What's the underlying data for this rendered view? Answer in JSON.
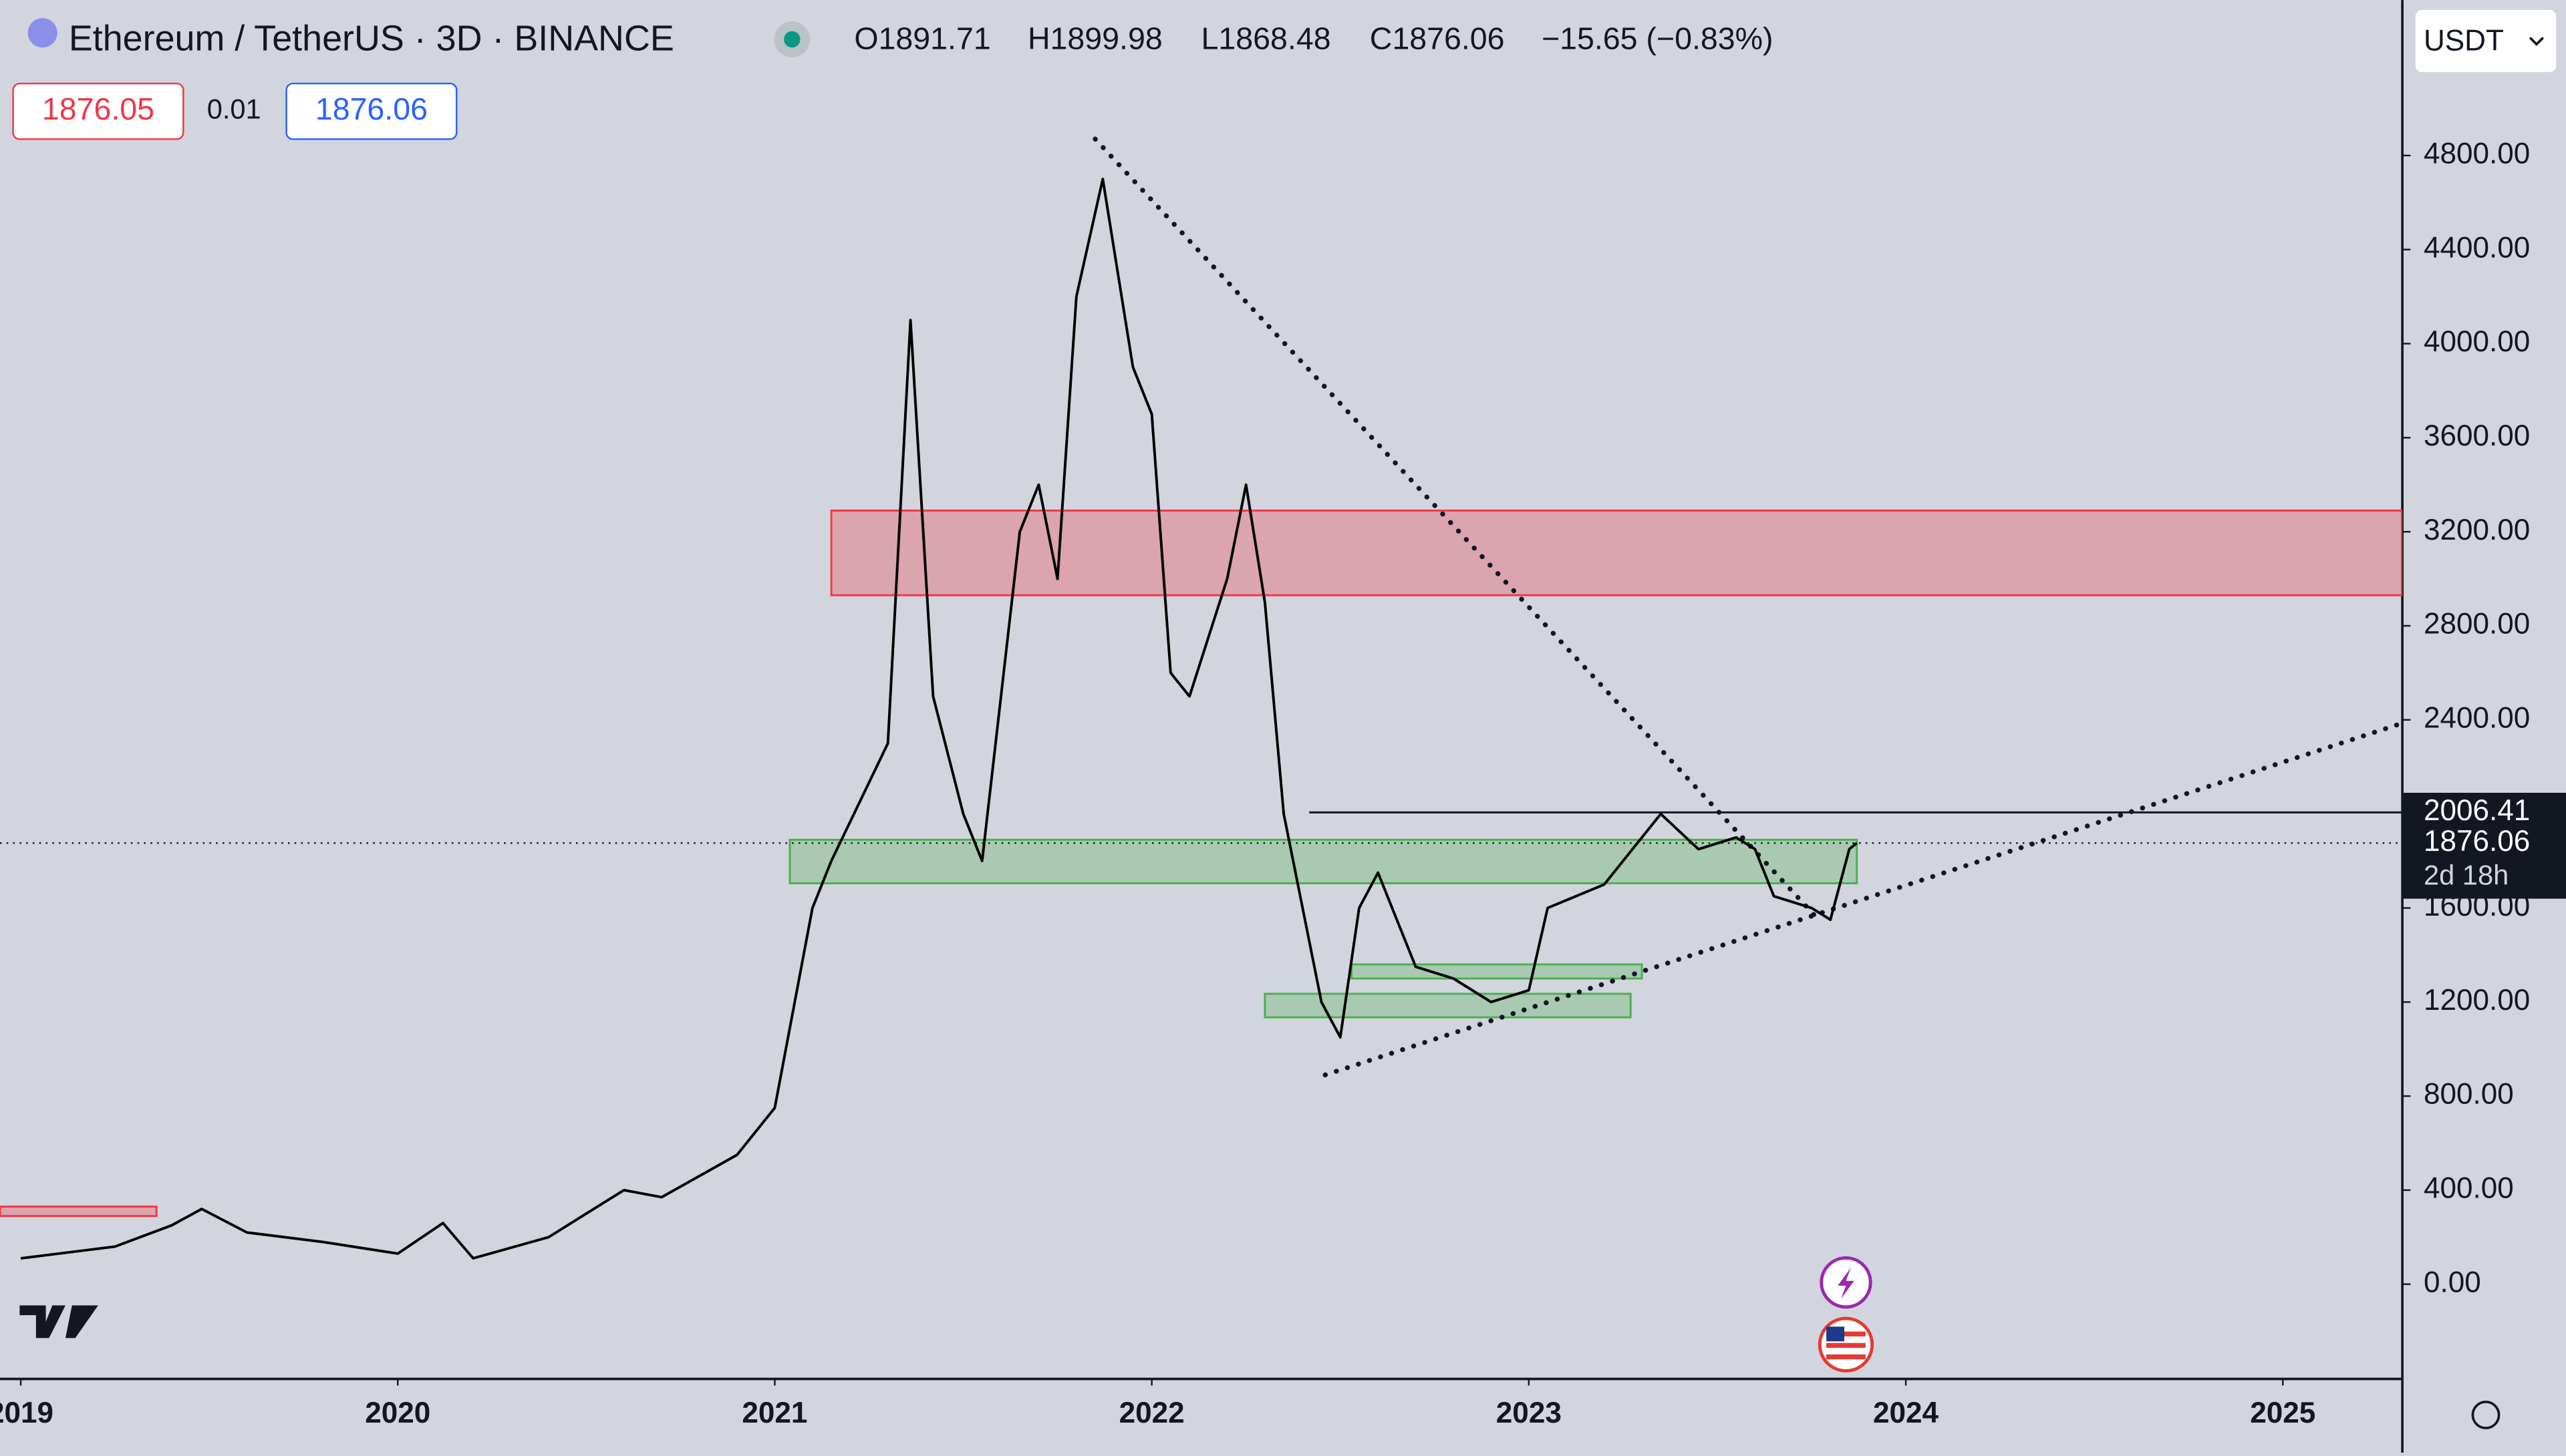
{
  "header": {
    "symbol": "Ethereum / TetherUS · 3D · BINANCE",
    "ohlc": [
      "O1891.71",
      "H1899.98",
      "L1868.48",
      "C1876.06",
      "−15.65 (−0.83%)"
    ],
    "bid": "1876.05",
    "spread": "0.01",
    "ask": "1876.06",
    "currency": "USDT"
  },
  "chart_data": {
    "type": "line",
    "color": "#000000",
    "x": [
      2019.0,
      2019.25,
      2019.4,
      2019.48,
      2019.6,
      2019.8,
      2020.0,
      2020.12,
      2020.2,
      2020.4,
      2020.6,
      2020.7,
      2020.9,
      2021.0,
      2021.1,
      2021.15,
      2021.3,
      2021.36,
      2021.42,
      2021.5,
      2021.55,
      2021.65,
      2021.7,
      2021.75,
      2021.8,
      2021.87,
      2021.95,
      2022.0,
      2022.05,
      2022.1,
      2022.2,
      2022.25,
      2022.3,
      2022.35,
      2022.45,
      2022.5,
      2022.55,
      2022.6,
      2022.7,
      2022.8,
      2022.9,
      2023.0,
      2023.05,
      2023.2,
      2023.3,
      2023.35,
      2023.45,
      2023.55,
      2023.6,
      2023.65,
      2023.75,
      2023.8,
      2023.85,
      2023.87
    ],
    "values": [
      110,
      160,
      250,
      320,
      220,
      180,
      130,
      260,
      110,
      200,
      400,
      370,
      550,
      750,
      1600,
      1800,
      2300,
      4100,
      2500,
      2000,
      1800,
      3200,
      3400,
      3000,
      4200,
      4700,
      3900,
      3700,
      2600,
      2500,
      3000,
      3400,
      2900,
      2000,
      1200,
      1050,
      1600,
      1750,
      1350,
      1300,
      1200,
      1250,
      1600,
      1700,
      1900,
      2000,
      1850,
      1900,
      1850,
      1650,
      1600,
      1550,
      1850,
      1876.06
    ],
    "xlim": [
      2018.945,
      2025.317
    ],
    "xticks": [
      2019,
      2020,
      2021,
      2022,
      2023,
      2024,
      2025
    ],
    "ylim": [
      -403,
      5461
    ],
    "yticks": [
      {
        "value": 0,
        "label": "0.00"
      },
      {
        "value": 400,
        "label": "400.00"
      },
      {
        "value": 800,
        "label": "800.00"
      },
      {
        "value": 1200,
        "label": "1200.00"
      },
      {
        "value": 1600,
        "label": "1600.00"
      },
      {
        "value": 2000,
        "label": "2000.00"
      },
      {
        "value": 2400,
        "label": "2400.00"
      },
      {
        "value": 2800,
        "label": "2800.00"
      },
      {
        "value": 3200,
        "label": "3200.00"
      },
      {
        "value": 3600,
        "label": "3600.00"
      },
      {
        "value": 4000,
        "label": "4000.00"
      },
      {
        "value": 4400,
        "label": "4400.00"
      },
      {
        "value": 4800,
        "label": "4800.00"
      }
    ],
    "zones": [
      {
        "x0": 2021.15,
        "x1": 2025.317,
        "y0": 2930,
        "y1": 3290,
        "color": "#f23645"
      },
      {
        "x0": 2018.945,
        "x1": 2019.36,
        "y0": 290,
        "y1": 330,
        "color": "#f23645"
      },
      {
        "x0": 2021.04,
        "x1": 2023.87,
        "y0": 1705,
        "y1": 1890,
        "color": "#4caf50"
      },
      {
        "x0": 2022.53,
        "x1": 2023.3,
        "y0": 1300,
        "y1": 1360,
        "color": "#4caf50"
      },
      {
        "x0": 2022.3,
        "x1": 2023.27,
        "y0": 1135,
        "y1": 1235,
        "color": "#4caf50"
      }
    ],
    "trendlines": [
      {
        "x0": 2021.85,
        "y0": 4870,
        "x1": 2023.76,
        "y1": 1565
      },
      {
        "x0": 2022.46,
        "y0": 890,
        "x1": 2025.317,
        "y1": 2386
      }
    ],
    "hline": 2006.41,
    "last_price": 1876.06,
    "countdown": "2d 18h"
  }
}
